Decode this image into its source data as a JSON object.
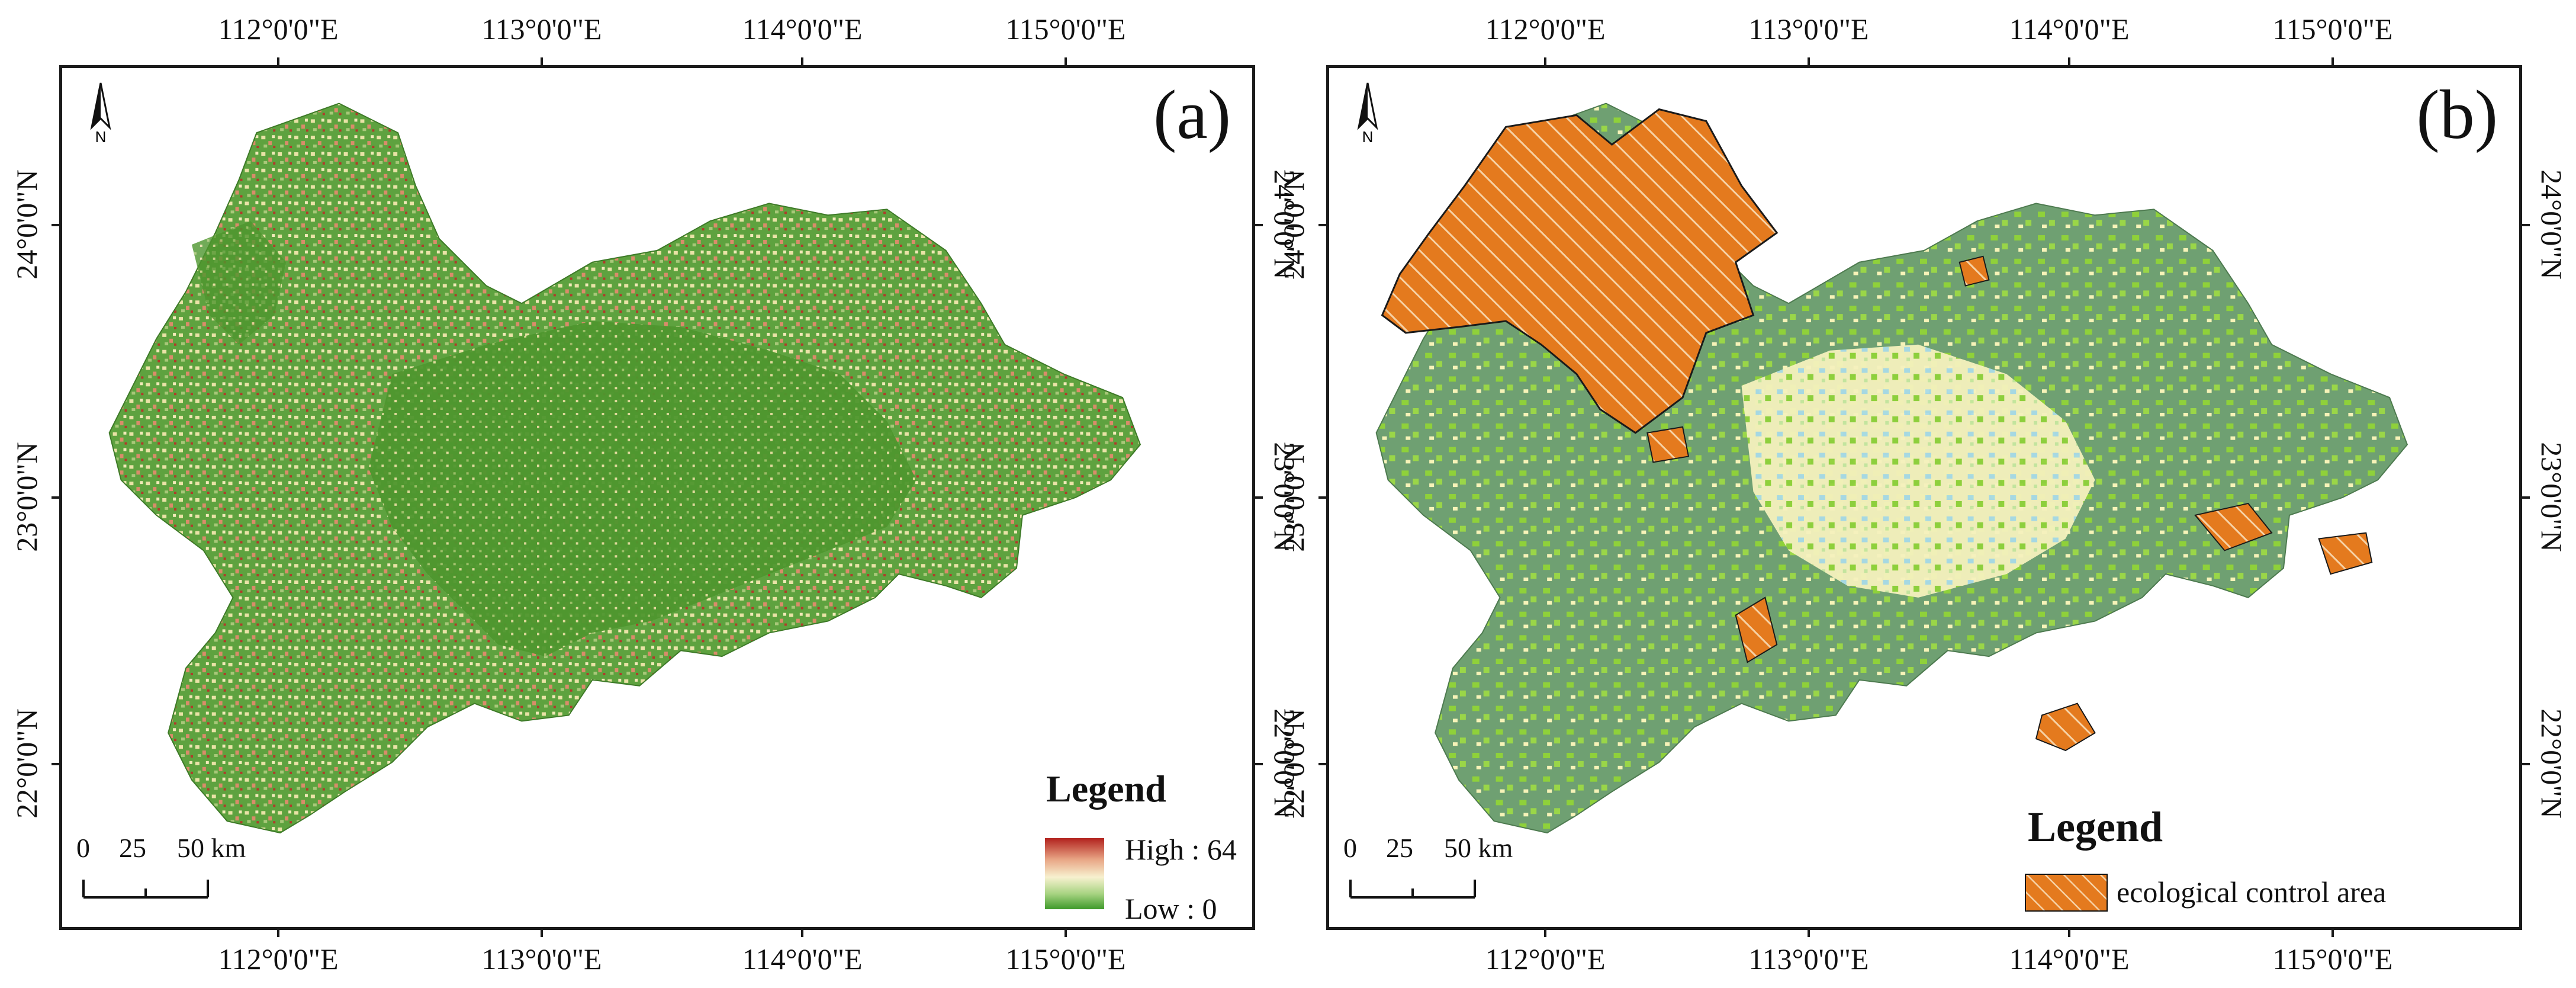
{
  "panels": {
    "a": {
      "label": "(a)",
      "legend": {
        "title": "Legend",
        "high_label": "High : 64",
        "low_label": "Low : 0",
        "ramp_colors": [
          "#b2221e",
          "#f3e7b3",
          "#3f9a2b"
        ]
      }
    },
    "b": {
      "label": "(b)",
      "legend": {
        "title": "Legend",
        "item_label": "ecological control area",
        "item_color": "#e67e22"
      }
    }
  },
  "axes": {
    "lon_labels": [
      "112°0'0\"E",
      "113°0'0\"E",
      "114°0'0\"E",
      "115°0'0\"E"
    ],
    "lat_labels": [
      "24°0'0\"N",
      "23°0'0\"N",
      "22°0'0\"N"
    ]
  },
  "north_arrow": {
    "label": "N"
  },
  "scale_bar": {
    "labels": [
      "0",
      "25",
      "50 km"
    ]
  },
  "colors": {
    "green_dark": "#4c9a35",
    "green_mid": "#6aab4a",
    "beige": "#eee6ad",
    "red": "#c0392b",
    "gray_green": "#6fa072",
    "lime": "#8fd13a",
    "light_yellow": "#f7f3b8",
    "light_blue": "#a9dbe8",
    "orange": "#e47a1e"
  }
}
